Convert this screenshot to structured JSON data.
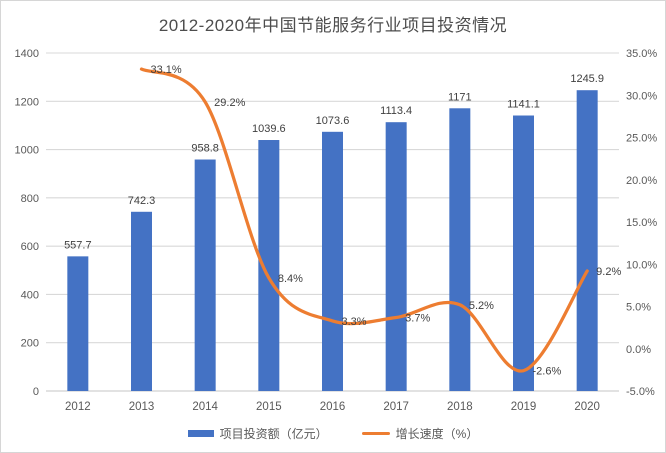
{
  "title": "2012-2020年中国节能服务行业项目投资情况",
  "chart_data": {
    "type": "bar+line combo",
    "title": "2012-2020年中国节能服务行业项目投资情况",
    "categories": [
      "2012",
      "2013",
      "2014",
      "2015",
      "2016",
      "2017",
      "2018",
      "2019",
      "2020"
    ],
    "series": [
      {
        "name": "项目投资额（亿元）",
        "type": "bar",
        "axis": "left",
        "color": "#4472C4",
        "values": [
          557.7,
          742.3,
          958.8,
          1039.6,
          1073.6,
          1113.4,
          1171,
          1141.1,
          1245.9
        ],
        "labels": [
          "557.7",
          "742.3",
          "958.8",
          "1039.6",
          "1073.6",
          "1113.4",
          "1171",
          "1141.1",
          "1245.9"
        ]
      },
      {
        "name": "增长速度（%）",
        "type": "line",
        "axis": "right",
        "color": "#ED7D31",
        "smooth": true,
        "values": [
          null,
          33.1,
          29.2,
          8.4,
          3.3,
          3.7,
          5.2,
          -2.6,
          9.2
        ],
        "labels": [
          null,
          "33.1%",
          "29.2%",
          "8.4%",
          "3.3%",
          "3.7%",
          "5.2%",
          "-2.6%",
          "9.2%"
        ]
      }
    ],
    "left_axis": {
      "min": 0,
      "max": 1400,
      "step": 200,
      "ticks": [
        "0",
        "200",
        "400",
        "600",
        "800",
        "1000",
        "1200",
        "1400"
      ]
    },
    "right_axis": {
      "min": -5,
      "max": 35,
      "step": 5,
      "ticks": [
        "-5.0%",
        "0.0%",
        "5.0%",
        "10.0%",
        "15.0%",
        "20.0%",
        "25.0%",
        "30.0%",
        "35.0%"
      ]
    },
    "grid": true,
    "legend_position": "bottom",
    "legend": [
      "项目投资额（亿元）",
      "增长速度（%）"
    ]
  },
  "colors": {
    "bar": "#4472C4",
    "line": "#ED7D31",
    "gridline": "#d9d9d9",
    "axis_line": "#c6c6c6",
    "axis_text": "#595959",
    "data_label": "#404040",
    "title_text": "#4d4d4d"
  }
}
